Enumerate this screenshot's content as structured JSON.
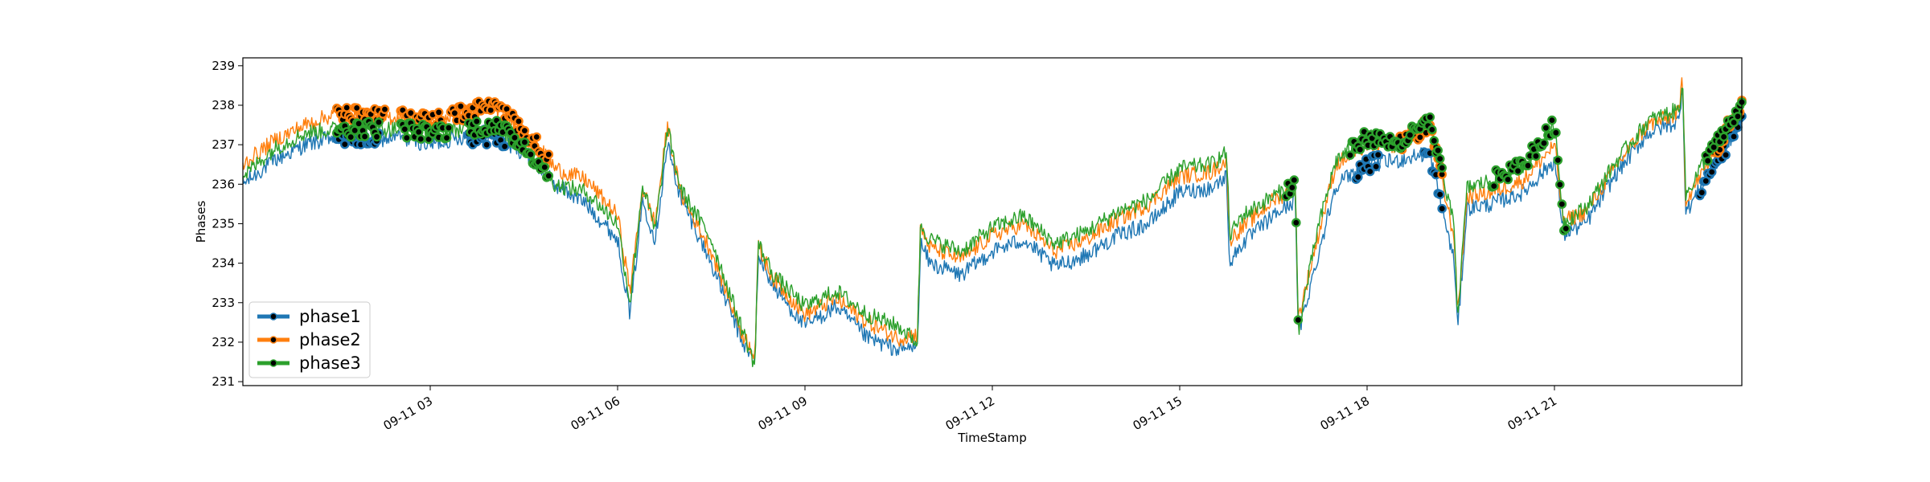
{
  "chart_data": {
    "type": "line",
    "xlabel": "TimeStamp",
    "ylabel": "Phases",
    "title": "",
    "xlim": [
      0.0,
      24.0
    ],
    "ylim": [
      230.9,
      239.2
    ],
    "x_ticks": [
      {
        "value": 3,
        "label": "09-11 03"
      },
      {
        "value": 6,
        "label": "09-11 06"
      },
      {
        "value": 9,
        "label": "09-11 09"
      },
      {
        "value": 12,
        "label": "09-11 12"
      },
      {
        "value": 15,
        "label": "09-11 15"
      },
      {
        "value": 18,
        "label": "09-11 18"
      },
      {
        "value": 21,
        "label": "09-11 21"
      }
    ],
    "y_ticks": [
      231,
      232,
      233,
      234,
      235,
      236,
      237,
      238,
      239
    ],
    "grid": false,
    "legend_position": "lower-left",
    "colors": {
      "phase1": "#1f77b4",
      "phase2": "#ff7f0e",
      "phase3": "#2ca02c",
      "marker_edge": "#000000"
    },
    "series": [
      {
        "name": "phase1",
        "x": [
          0.0,
          0.5,
          1.0,
          1.5,
          2.0,
          2.5,
          3.0,
          3.5,
          4.0,
          4.5,
          5.0,
          5.5,
          6.0,
          6.2,
          6.4,
          6.6,
          6.8,
          7.0,
          7.5,
          8.0,
          8.2,
          8.25,
          8.5,
          9.0,
          9.5,
          10.0,
          10.5,
          10.8,
          10.85,
          11.0,
          11.5,
          12.0,
          12.5,
          13.0,
          13.5,
          14.0,
          14.5,
          15.0,
          15.5,
          15.75,
          15.8,
          16.0,
          16.5,
          16.85,
          16.9,
          17.2,
          17.5,
          18.0,
          18.5,
          19.0,
          19.4,
          19.45,
          19.6,
          20.0,
          20.5,
          21.0,
          21.15,
          21.2,
          21.5,
          22.0,
          22.5,
          23.0,
          23.05,
          23.1,
          23.5,
          24.0
        ],
        "values": [
          236.0,
          236.6,
          237.0,
          237.2,
          237.1,
          237.2,
          237.0,
          237.2,
          237.2,
          236.8,
          236.0,
          235.5,
          234.6,
          232.7,
          235.6,
          234.6,
          237.0,
          235.7,
          234.0,
          232.0,
          231.5,
          234.2,
          233.4,
          232.4,
          232.9,
          232.1,
          231.8,
          231.9,
          234.5,
          234.0,
          233.7,
          234.3,
          234.6,
          233.9,
          234.2,
          234.7,
          235.0,
          235.8,
          235.9,
          236.2,
          234.0,
          234.5,
          235.2,
          235.6,
          232.2,
          234.1,
          236.0,
          236.5,
          236.6,
          236.8,
          234.0,
          232.3,
          235.4,
          235.5,
          235.8,
          236.6,
          234.7,
          234.8,
          235.0,
          236.3,
          237.3,
          237.6,
          238.7,
          235.3,
          236.3,
          237.6
        ]
      },
      {
        "name": "phase2",
        "x": [
          0.0,
          0.5,
          1.0,
          1.5,
          2.0,
          2.5,
          3.0,
          3.5,
          4.0,
          4.5,
          5.0,
          5.5,
          6.0,
          6.2,
          6.4,
          6.6,
          6.8,
          7.0,
          7.5,
          8.0,
          8.2,
          8.25,
          8.5,
          9.0,
          9.5,
          10.0,
          10.5,
          10.8,
          10.85,
          11.0,
          11.5,
          12.0,
          12.5,
          13.0,
          13.5,
          14.0,
          14.5,
          15.0,
          15.5,
          15.75,
          15.8,
          16.0,
          16.5,
          16.85,
          16.9,
          17.2,
          17.5,
          18.0,
          18.5,
          19.0,
          19.4,
          19.45,
          19.6,
          20.0,
          20.5,
          21.0,
          21.15,
          21.2,
          21.5,
          22.0,
          22.5,
          23.0,
          23.05,
          23.1,
          23.5,
          24.0
        ],
        "values": [
          236.5,
          237.1,
          237.5,
          237.8,
          237.7,
          237.7,
          237.6,
          237.8,
          238.0,
          237.4,
          236.4,
          236.1,
          235.2,
          233.3,
          235.9,
          235.0,
          237.5,
          235.8,
          234.3,
          232.2,
          231.7,
          234.4,
          233.6,
          232.7,
          233.1,
          232.5,
          232.1,
          232.2,
          234.9,
          234.4,
          234.1,
          234.7,
          235.0,
          234.3,
          234.6,
          235.1,
          235.5,
          236.2,
          236.3,
          236.6,
          234.6,
          234.9,
          235.6,
          235.9,
          232.6,
          234.6,
          236.5,
          237.0,
          237.0,
          237.5,
          234.6,
          232.7,
          235.7,
          235.8,
          236.1,
          237.0,
          235.0,
          235.1,
          235.3,
          236.5,
          237.5,
          237.8,
          238.8,
          235.6,
          236.6,
          238.1
        ]
      },
      {
        "name": "phase3",
        "x": [
          0.0,
          0.5,
          1.0,
          1.5,
          2.0,
          2.5,
          3.0,
          3.5,
          4.0,
          4.5,
          5.0,
          5.5,
          6.0,
          6.2,
          6.4,
          6.6,
          6.8,
          7.0,
          7.5,
          8.0,
          8.2,
          8.25,
          8.5,
          9.0,
          9.5,
          10.0,
          10.5,
          10.8,
          10.85,
          11.0,
          11.5,
          12.0,
          12.5,
          13.0,
          13.5,
          14.0,
          14.5,
          15.0,
          15.5,
          15.75,
          15.8,
          16.0,
          16.5,
          16.85,
          16.9,
          17.2,
          17.5,
          18.0,
          18.5,
          19.0,
          19.4,
          19.45,
          19.6,
          20.0,
          20.5,
          21.0,
          21.15,
          21.2,
          21.5,
          22.0,
          22.5,
          23.0,
          23.05,
          23.1,
          23.5,
          24.0
        ],
        "values": [
          236.2,
          236.9,
          237.3,
          237.4,
          237.4,
          237.4,
          237.3,
          237.4,
          237.5,
          237.0,
          236.0,
          235.8,
          235.0,
          233.0,
          236.0,
          234.8,
          237.4,
          235.9,
          234.6,
          232.3,
          231.4,
          234.5,
          233.7,
          232.9,
          233.3,
          232.7,
          232.4,
          232.0,
          235.0,
          234.6,
          234.3,
          234.9,
          235.2,
          234.5,
          234.8,
          235.3,
          235.6,
          236.4,
          236.5,
          236.8,
          234.7,
          235.2,
          235.7,
          236.0,
          232.3,
          234.8,
          236.6,
          237.2,
          237.0,
          237.6,
          234.9,
          232.6,
          235.9,
          236.1,
          236.5,
          237.5,
          235.0,
          235.1,
          235.4,
          236.6,
          237.6,
          237.9,
          238.8,
          235.7,
          236.9,
          237.9
        ]
      }
    ],
    "markers": [
      {
        "series": "phase1",
        "x_ranges": [
          [
            1.5,
            2.2
          ],
          [
            3.6,
            4.2
          ],
          [
            17.8,
            18.2
          ],
          [
            18.9,
            19.2
          ],
          [
            23.3,
            24.0
          ]
        ]
      },
      {
        "series": "phase2",
        "x_ranges": [
          [
            1.5,
            2.3
          ],
          [
            2.5,
            3.2
          ],
          [
            3.3,
            4.9
          ],
          [
            18.5,
            19.2
          ],
          [
            23.5,
            24.0
          ]
        ]
      },
      {
        "series": "phase3",
        "x_ranges": [
          [
            1.5,
            2.2
          ],
          [
            2.5,
            3.3
          ],
          [
            3.6,
            4.9
          ],
          [
            16.7,
            16.9
          ],
          [
            17.7,
            19.2
          ],
          [
            20.0,
            21.2
          ],
          [
            23.4,
            24.0
          ]
        ]
      }
    ]
  }
}
